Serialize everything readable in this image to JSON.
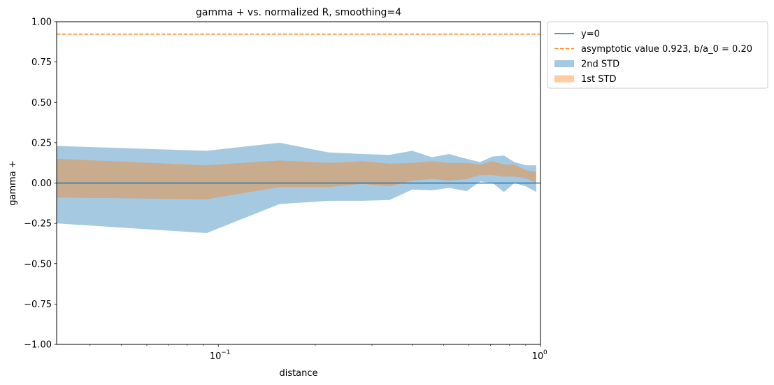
{
  "chart_data": {
    "type": "area",
    "title": "gamma + vs. normalized R, smoothing=4",
    "xlabel": "distance",
    "ylabel": "gamma +",
    "xscale": "log",
    "xlim": [
      0.0315,
      1.0
    ],
    "ylim": [
      -1.0,
      1.0
    ],
    "yticks": [
      -1.0,
      -0.75,
      -0.5,
      -0.25,
      0.0,
      0.25,
      0.5,
      0.75,
      1.0
    ],
    "ytick_labels": [
      "−1.00",
      "−0.75",
      "−0.50",
      "−0.25",
      "0.00",
      "0.25",
      "0.50",
      "0.75",
      "1.00"
    ],
    "xticks": [
      {
        "value": 0.1,
        "base": "10",
        "exp": "−1"
      },
      {
        "value": 1.0,
        "base": "10",
        "exp": "0"
      }
    ],
    "grid": false,
    "legend_position": "outside-top-right",
    "legend": [
      {
        "label": "y=0",
        "kind": "line",
        "color": "#1f77b4"
      },
      {
        "label": "asymptotic value 0.923, b/a_0 = 0.20",
        "kind": "dashed",
        "color": "#ff7f0e"
      },
      {
        "label": "2nd STD",
        "kind": "patch",
        "color": "#1f77b4"
      },
      {
        "label": "1st STD",
        "kind": "patch",
        "color": "#ff7f0e"
      }
    ],
    "y0_line": {
      "value": 0.0,
      "color": "#1f77b4"
    },
    "asymptote": {
      "value": 0.923,
      "color": "#ff7f0e"
    },
    "x": [
      0.0315,
      0.092,
      0.155,
      0.22,
      0.28,
      0.34,
      0.4,
      0.46,
      0.52,
      0.59,
      0.65,
      0.71,
      0.77,
      0.83,
      0.9,
      0.97
    ],
    "std2_upper": [
      0.23,
      0.2,
      0.25,
      0.19,
      0.18,
      0.175,
      0.2,
      0.16,
      0.18,
      0.15,
      0.13,
      0.165,
      0.17,
      0.13,
      0.11,
      0.11
    ],
    "std2_lower": [
      -0.25,
      -0.31,
      -0.13,
      -0.11,
      -0.11,
      -0.105,
      -0.04,
      -0.045,
      -0.03,
      -0.05,
      0.01,
      0.0,
      -0.055,
      0.0,
      -0.02,
      -0.055
    ],
    "std1_upper": [
      0.15,
      0.11,
      0.14,
      0.125,
      0.135,
      0.12,
      0.125,
      0.135,
      0.125,
      0.125,
      0.115,
      0.135,
      0.115,
      0.115,
      0.08,
      0.07
    ],
    "std1_lower": [
      -0.09,
      -0.1,
      -0.025,
      -0.025,
      -0.005,
      -0.02,
      0.015,
      0.025,
      0.015,
      0.025,
      0.05,
      0.05,
      0.04,
      0.04,
      0.03,
      0.0
    ],
    "colors": {
      "band2": "#1f77b4",
      "band1": "#ff7f0e",
      "overlap": "#c8a98c"
    }
  }
}
